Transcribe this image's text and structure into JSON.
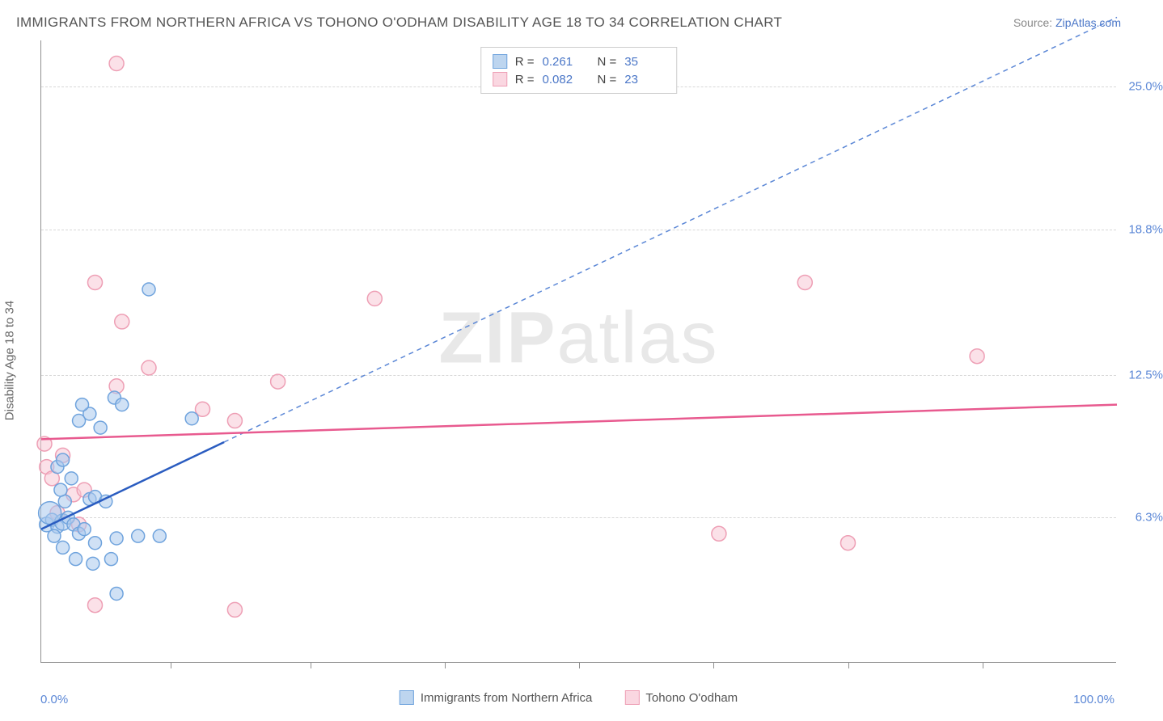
{
  "title": "IMMIGRANTS FROM NORTHERN AFRICA VS TOHONO O'ODHAM DISABILITY AGE 18 TO 34 CORRELATION CHART",
  "source_label": "Source:",
  "source_name": "ZipAtlas.com",
  "y_axis_title": "Disability Age 18 to 34",
  "x_axis": {
    "min_label": "0.0%",
    "max_label": "100.0%",
    "min": 0,
    "max": 100,
    "tick_positions": [
      12,
      25,
      37.5,
      50,
      62.5,
      75,
      87.5
    ]
  },
  "y_axis": {
    "gridlines": [
      {
        "value": 6.3,
        "label": "6.3%"
      },
      {
        "value": 12.5,
        "label": "12.5%"
      },
      {
        "value": 18.8,
        "label": "18.8%"
      },
      {
        "value": 25.0,
        "label": "25.0%"
      }
    ],
    "min": 0,
    "max": 27
  },
  "series": [
    {
      "name": "Immigrants from Northern Africa",
      "color_fill": "#a9c9ec",
      "color_stroke": "#6fa3dd",
      "swatch_fill": "#bdd5ef",
      "swatch_border": "#6fa3dd",
      "r_value": "0.261",
      "n_value": "35",
      "trend": {
        "type": "dashed",
        "color": "#5b87d6",
        "x1": 0,
        "y1": 5.8,
        "x2": 100,
        "y2": 28,
        "solid_until_x": 17
      },
      "points": [
        {
          "x": 0.5,
          "y": 6.0,
          "r": 9
        },
        {
          "x": 1.0,
          "y": 6.2,
          "r": 8
        },
        {
          "x": 1.5,
          "y": 5.9,
          "r": 8
        },
        {
          "x": 2.0,
          "y": 6.1,
          "r": 10
        },
        {
          "x": 0.8,
          "y": 6.5,
          "r": 14
        },
        {
          "x": 2.5,
          "y": 6.3,
          "r": 8
        },
        {
          "x": 3.0,
          "y": 6.0,
          "r": 8
        },
        {
          "x": 1.2,
          "y": 5.5,
          "r": 8
        },
        {
          "x": 3.5,
          "y": 5.6,
          "r": 8
        },
        {
          "x": 4.0,
          "y": 5.8,
          "r": 8
        },
        {
          "x": 2.2,
          "y": 7.0,
          "r": 8
        },
        {
          "x": 4.5,
          "y": 7.1,
          "r": 8
        },
        {
          "x": 1.8,
          "y": 7.5,
          "r": 8
        },
        {
          "x": 5.0,
          "y": 7.2,
          "r": 8
        },
        {
          "x": 6.0,
          "y": 7.0,
          "r": 8
        },
        {
          "x": 2.8,
          "y": 8.0,
          "r": 8
        },
        {
          "x": 3.2,
          "y": 4.5,
          "r": 8
        },
        {
          "x": 4.8,
          "y": 4.3,
          "r": 8
        },
        {
          "x": 6.5,
          "y": 4.5,
          "r": 8
        },
        {
          "x": 7.0,
          "y": 5.4,
          "r": 8
        },
        {
          "x": 9.0,
          "y": 5.5,
          "r": 8
        },
        {
          "x": 11.0,
          "y": 5.5,
          "r": 8
        },
        {
          "x": 1.5,
          "y": 8.5,
          "r": 8
        },
        {
          "x": 2.0,
          "y": 8.8,
          "r": 8
        },
        {
          "x": 3.5,
          "y": 10.5,
          "r": 8
        },
        {
          "x": 4.5,
          "y": 10.8,
          "r": 8
        },
        {
          "x": 5.5,
          "y": 10.2,
          "r": 8
        },
        {
          "x": 6.8,
          "y": 11.5,
          "r": 8
        },
        {
          "x": 7.5,
          "y": 11.2,
          "r": 8
        },
        {
          "x": 14.0,
          "y": 10.6,
          "r": 8
        },
        {
          "x": 3.8,
          "y": 11.2,
          "r": 8
        },
        {
          "x": 7.0,
          "y": 3.0,
          "r": 8
        },
        {
          "x": 10.0,
          "y": 16.2,
          "r": 8
        },
        {
          "x": 2.0,
          "y": 5.0,
          "r": 8
        },
        {
          "x": 5.0,
          "y": 5.2,
          "r": 8
        }
      ]
    },
    {
      "name": "Tohono O'odham",
      "color_fill": "#f7c9d6",
      "color_stroke": "#ee9fb5",
      "swatch_fill": "#fad7e1",
      "swatch_border": "#ee9fb5",
      "r_value": "0.082",
      "n_value": "23",
      "trend": {
        "type": "solid",
        "color": "#e85a8f",
        "x1": 0,
        "y1": 9.7,
        "x2": 100,
        "y2": 11.2
      },
      "points": [
        {
          "x": 0.5,
          "y": 8.5,
          "r": 9
        },
        {
          "x": 1.0,
          "y": 8.0,
          "r": 9
        },
        {
          "x": 2.0,
          "y": 9.0,
          "r": 9
        },
        {
          "x": 0.3,
          "y": 9.5,
          "r": 9
        },
        {
          "x": 3.0,
          "y": 7.3,
          "r": 9
        },
        {
          "x": 4.0,
          "y": 7.5,
          "r": 9
        },
        {
          "x": 1.5,
          "y": 6.5,
          "r": 9
        },
        {
          "x": 5.0,
          "y": 2.5,
          "r": 9
        },
        {
          "x": 18.0,
          "y": 2.3,
          "r": 9
        },
        {
          "x": 7.0,
          "y": 12.0,
          "r": 9
        },
        {
          "x": 10.0,
          "y": 12.8,
          "r": 9
        },
        {
          "x": 15.0,
          "y": 11.0,
          "r": 9
        },
        {
          "x": 22.0,
          "y": 12.2,
          "r": 9
        },
        {
          "x": 7.5,
          "y": 14.8,
          "r": 9
        },
        {
          "x": 5.0,
          "y": 16.5,
          "r": 9
        },
        {
          "x": 18.0,
          "y": 10.5,
          "r": 9
        },
        {
          "x": 31.0,
          "y": 15.8,
          "r": 9
        },
        {
          "x": 7.0,
          "y": 26.0,
          "r": 9
        },
        {
          "x": 63.0,
          "y": 5.6,
          "r": 9
        },
        {
          "x": 75.0,
          "y": 5.2,
          "r": 9
        },
        {
          "x": 71.0,
          "y": 16.5,
          "r": 9
        },
        {
          "x": 87.0,
          "y": 13.3,
          "r": 9
        },
        {
          "x": 3.5,
          "y": 6.0,
          "r": 9
        }
      ]
    }
  ],
  "legend_top": {
    "r_label": "R  =",
    "n_label": "N  ="
  },
  "watermark": {
    "bold": "ZIP",
    "rest": "atlas"
  }
}
